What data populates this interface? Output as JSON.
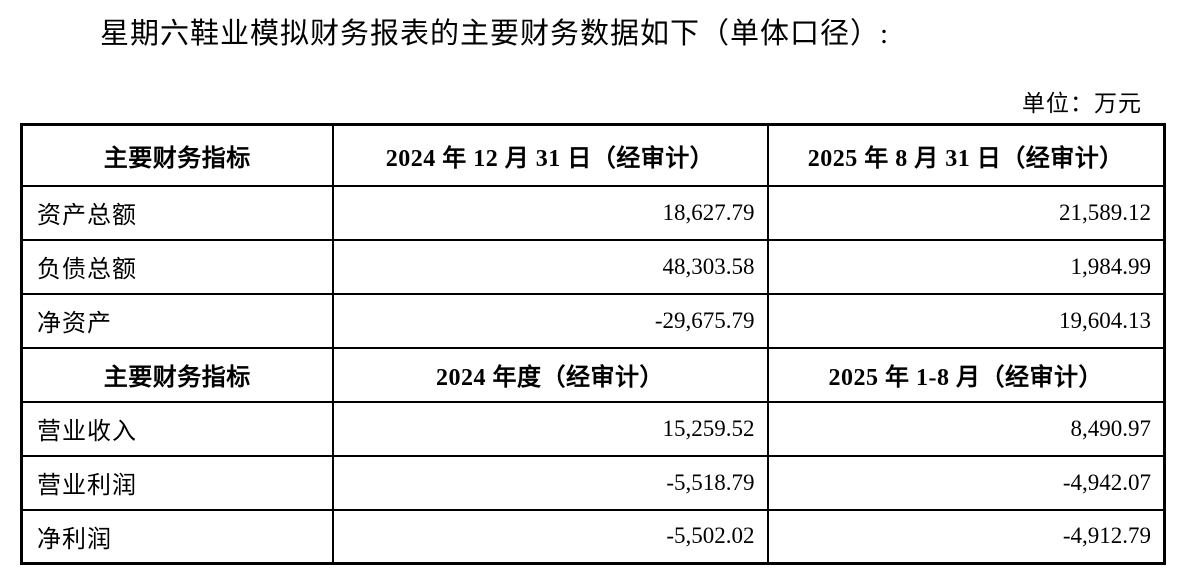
{
  "page": {
    "title": "星期六鞋业模拟财务报表的主要财务数据如下（单体口径）:",
    "unit_label": "单位：万元"
  },
  "colors": {
    "text": "#000000",
    "border": "#000000",
    "background": "#ffffff"
  },
  "table": {
    "sections": [
      {
        "header": [
          "主要财务指标",
          "2024 年 12 月 31 日（经审计）",
          "2025 年 8 月 31 日（经审计）"
        ],
        "rows": [
          [
            "资产总额",
            "18,627.79",
            "21,589.12"
          ],
          [
            "负债总额",
            "48,303.58",
            "1,984.99"
          ],
          [
            "净资产",
            "-29,675.79",
            "19,604.13"
          ]
        ]
      },
      {
        "header": [
          "主要财务指标",
          "2024 年度（经审计）",
          "2025 年 1-8 月（经审计）"
        ],
        "rows": [
          [
            "营业收入",
            "15,259.52",
            "8,490.97"
          ],
          [
            "营业利润",
            "-5,518.79",
            "-4,942.07"
          ],
          [
            "净利润",
            "-5,502.02",
            "-4,912.79"
          ]
        ]
      }
    ]
  }
}
